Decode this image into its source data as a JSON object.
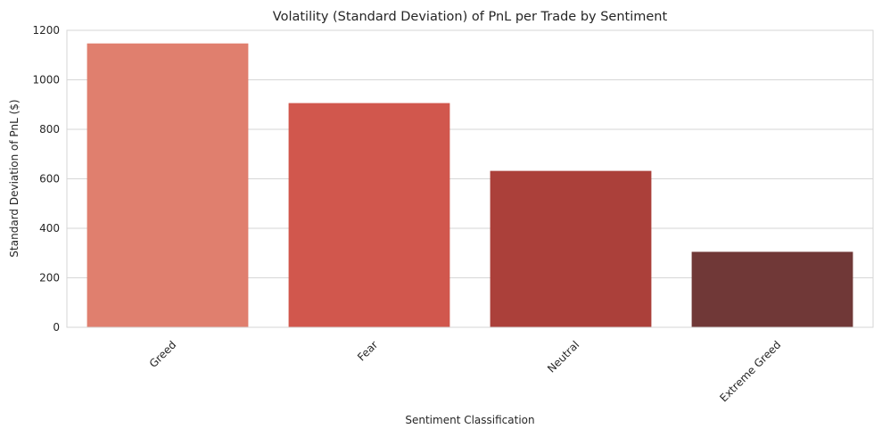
{
  "chart_data": {
    "type": "bar",
    "title": "Volatility (Standard Deviation) of PnL per Trade by Sentiment",
    "xlabel": "Sentiment Classification",
    "ylabel": "Standard Deviation of PnL ($)",
    "categories": [
      "Greed",
      "Fear",
      "Neutral",
      "Extreme Greed"
    ],
    "values": [
      1147,
      906,
      632,
      305
    ],
    "colors": [
      "#e07f6e",
      "#d1574d",
      "#ab403a",
      "#703837"
    ],
    "ylim": [
      0,
      1200
    ],
    "yticks": [
      0,
      200,
      400,
      600,
      800,
      1000,
      1200
    ],
    "grid": true,
    "legend": "none"
  }
}
